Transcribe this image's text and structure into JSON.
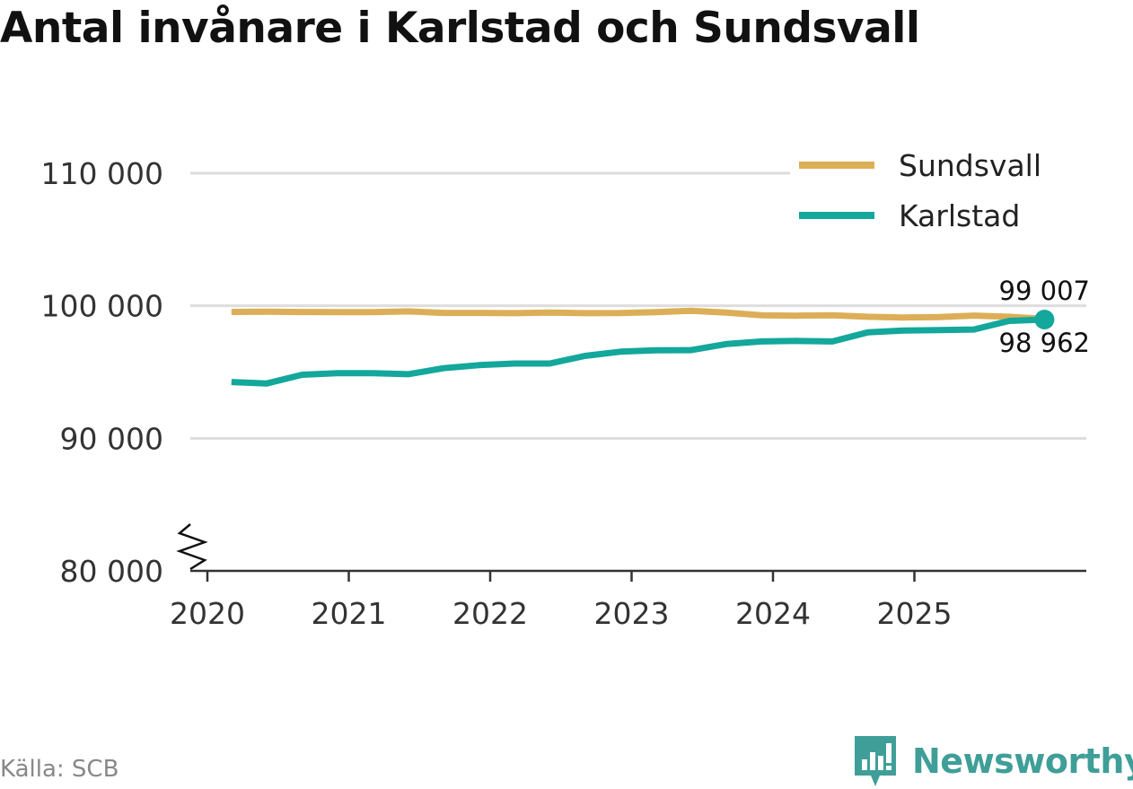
{
  "title": "Antal invånare i Karlstad och Sundsvall",
  "source": "Källa: SCB",
  "brand": {
    "name": "Newsworthy",
    "icon": "newsworthy-logo-icon",
    "color": "#3f9f98"
  },
  "chart_data": {
    "type": "line",
    "title": "Antal invånare i Karlstad och Sundsvall",
    "xlabel": "",
    "ylabel": "",
    "ylim": [
      80000,
      112000
    ],
    "xlim": [
      2020,
      2026.2
    ],
    "y_ticks": [
      80000,
      90000,
      100000,
      110000
    ],
    "y_tick_labels": [
      "80 000",
      "90 000",
      "100 000",
      "110 000"
    ],
    "x_ticks": [
      2020,
      2021,
      2022,
      2023,
      2024,
      2025
    ],
    "x_tick_labels": [
      "2020",
      "2021",
      "2022",
      "2023",
      "2024",
      "2025"
    ],
    "axis_break": true,
    "legend_position": "top-right",
    "x": [
      2020.17,
      2020.42,
      2020.67,
      2020.92,
      2021.17,
      2021.42,
      2021.67,
      2021.92,
      2022.17,
      2022.42,
      2022.67,
      2022.92,
      2023.17,
      2023.42,
      2023.67,
      2023.92,
      2024.17,
      2024.42,
      2024.67,
      2024.92,
      2025.17,
      2025.42,
      2025.67,
      2025.92
    ],
    "series": [
      {
        "name": "Sundsvall",
        "color": "#dcae57",
        "values": [
          99540,
          99560,
          99530,
          99520,
          99520,
          99580,
          99460,
          99460,
          99440,
          99490,
          99440,
          99450,
          99520,
          99620,
          99480,
          99290,
          99250,
          99290,
          99170,
          99120,
          99150,
          99260,
          99170,
          99007
        ],
        "end_label": "99 007"
      },
      {
        "name": "Karlstad",
        "color": "#14a79b",
        "values": [
          94250,
          94140,
          94800,
          94910,
          94910,
          94840,
          95290,
          95520,
          95640,
          95640,
          96220,
          96540,
          96640,
          96650,
          97110,
          97310,
          97350,
          97310,
          97990,
          98130,
          98170,
          98210,
          98860,
          98962
        ],
        "end_label": "98 962"
      }
    ]
  }
}
